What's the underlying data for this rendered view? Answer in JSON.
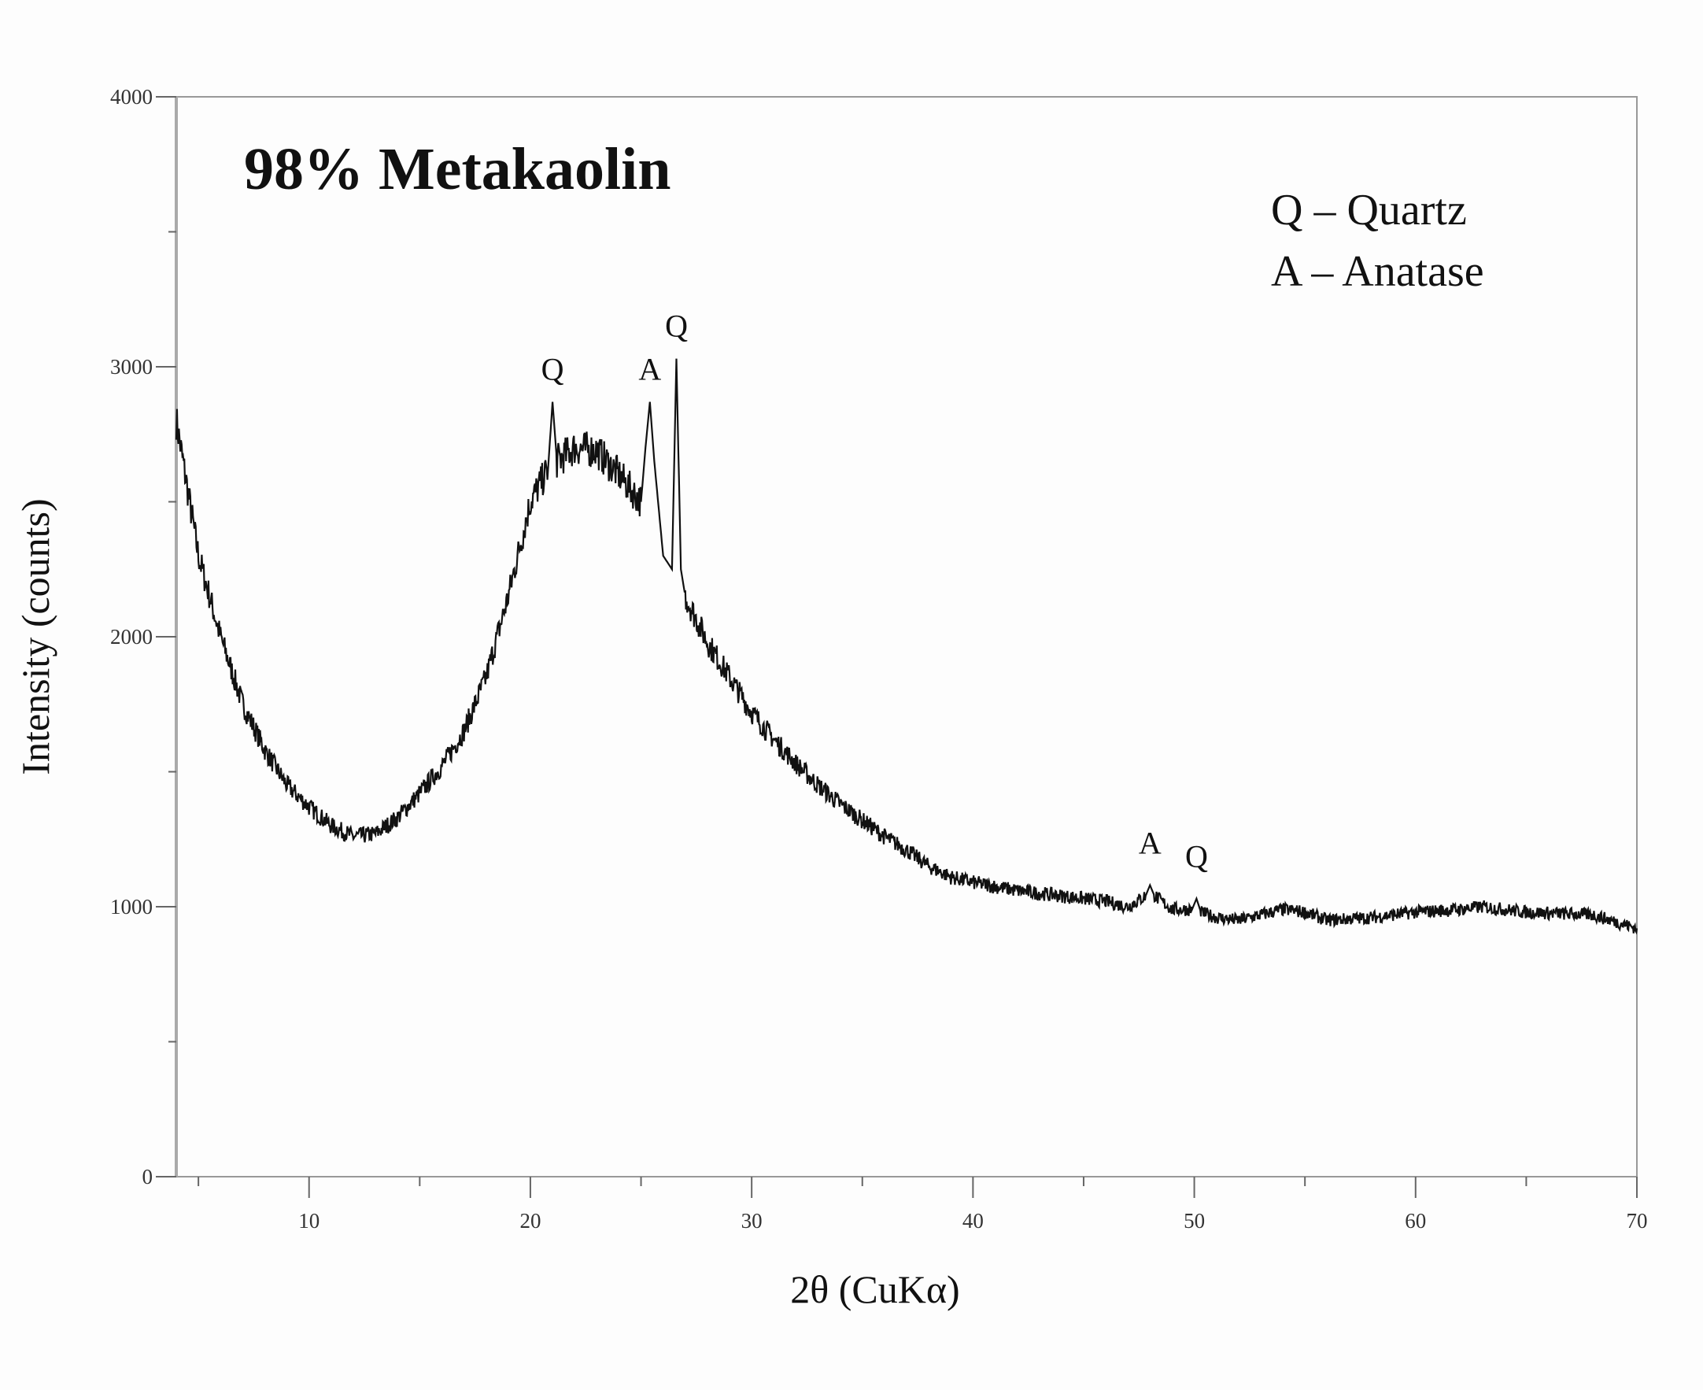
{
  "chart_data": {
    "type": "line",
    "title": "98% Metakaolin",
    "xlabel": "2θ (CuKα)",
    "ylabel": "Intensity (counts)",
    "xlim": [
      4,
      70
    ],
    "ylim": [
      0,
      4000
    ],
    "xticks": [
      10,
      20,
      30,
      40,
      50,
      60,
      70
    ],
    "yticks": [
      0,
      1000,
      2000,
      3000,
      4000
    ],
    "grid": false,
    "line_color": "#111111",
    "legend": {
      "placement": "top-right",
      "entries": [
        "Q – Quartz",
        "A – Anatase"
      ]
    },
    "series": [
      {
        "x": [
          4,
          5,
          6,
          7,
          8,
          9,
          10,
          11,
          12,
          13,
          14,
          15,
          16,
          17,
          18,
          19,
          20,
          20.8,
          21,
          21.2,
          22,
          23,
          24,
          25,
          25.2,
          25.4,
          25.6,
          26,
          26.4,
          26.6,
          26.8,
          27,
          28,
          29,
          30,
          31,
          32,
          33,
          34,
          35,
          36,
          37,
          38,
          39,
          40,
          42,
          44,
          46,
          47,
          47.8,
          48,
          48.2,
          49,
          49.9,
          50.1,
          50.3,
          51,
          52,
          54,
          55,
          56,
          58,
          60,
          62,
          63,
          65,
          68,
          70
        ],
        "y": [
          2800,
          2300,
          2000,
          1750,
          1580,
          1450,
          1370,
          1300,
          1260,
          1270,
          1330,
          1420,
          1520,
          1650,
          1850,
          2150,
          2500,
          2620,
          2870,
          2650,
          2700,
          2690,
          2600,
          2500,
          2700,
          2870,
          2650,
          2300,
          2250,
          3030,
          2250,
          2150,
          1980,
          1850,
          1720,
          1620,
          1530,
          1450,
          1380,
          1320,
          1260,
          1210,
          1150,
          1110,
          1090,
          1060,
          1040,
          1020,
          1000,
          1040,
          1080,
          1040,
          990,
          990,
          1030,
          980,
          960,
          950,
          990,
          980,
          950,
          960,
          980,
          990,
          1000,
          980,
          970,
          920
        ]
      }
    ],
    "annotations": [
      {
        "label": "Q",
        "x": 21.0,
        "y": 2870
      },
      {
        "label": "A",
        "x": 25.4,
        "y": 2870
      },
      {
        "label": "Q",
        "x": 26.6,
        "y": 3030
      },
      {
        "label": "A",
        "x": 48.0,
        "y": 1080
      },
      {
        "label": "Q",
        "x": 50.1,
        "y": 1030
      }
    ]
  }
}
